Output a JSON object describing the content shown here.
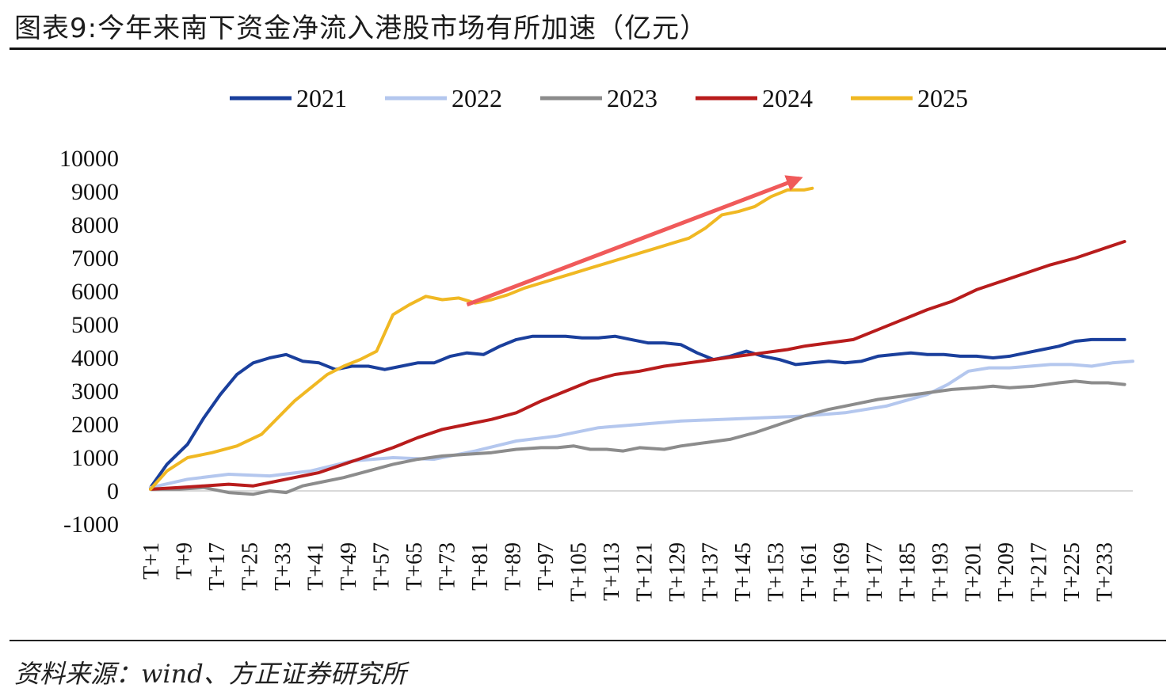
{
  "title": "图表9:今年来南下资金净流入港股市场有所加速（亿元）",
  "source": "资料来源：wind、方正证券研究所",
  "chart_data": {
    "type": "line",
    "ylim": [
      -1000,
      10000
    ],
    "yticks": [
      -1000,
      0,
      1000,
      2000,
      3000,
      4000,
      5000,
      6000,
      7000,
      8000,
      9000,
      10000
    ],
    "xrange": [
      1,
      240
    ],
    "xticks": [
      1,
      9,
      17,
      25,
      33,
      41,
      49,
      57,
      65,
      73,
      81,
      89,
      97,
      105,
      113,
      121,
      129,
      137,
      145,
      153,
      161,
      169,
      177,
      185,
      193,
      201,
      209,
      217,
      225,
      233
    ],
    "xtick_labels": [
      "T+1",
      "T+9",
      "T+17",
      "T+25",
      "T+33",
      "T+41",
      "T+49",
      "T+57",
      "T+65",
      "T+73",
      "T+81",
      "T+89",
      "T+97",
      "T+105",
      "T+113",
      "T+121",
      "T+129",
      "T+137",
      "T+145",
      "T+153",
      "T+161",
      "T+169",
      "T+177",
      "T+185",
      "T+193",
      "T+201",
      "T+209",
      "T+217",
      "T+225",
      "T+233"
    ],
    "legend_position": "top",
    "grid": false,
    "series": [
      {
        "name": "2021",
        "color": "#1a3f9c",
        "x": [
          1,
          5,
          10,
          14,
          18,
          22,
          26,
          30,
          34,
          36,
          38,
          42,
          46,
          50,
          54,
          58,
          62,
          66,
          70,
          74,
          78,
          82,
          86,
          90,
          94,
          98,
          102,
          106,
          110,
          114,
          118,
          122,
          126,
          130,
          134,
          138,
          142,
          146,
          150,
          154,
          158,
          162,
          166,
          170,
          174,
          178,
          182,
          186,
          190,
          194,
          198,
          202,
          206,
          210,
          214,
          218,
          222,
          226,
          230,
          234,
          238
        ],
        "y": [
          100,
          800,
          1400,
          2200,
          2900,
          3500,
          3850,
          4000,
          4100,
          4000,
          3900,
          3850,
          3650,
          3750,
          3750,
          3650,
          3750,
          3850,
          3850,
          4050,
          4150,
          4100,
          4350,
          4550,
          4650,
          4650,
          4650,
          4600,
          4600,
          4650,
          4550,
          4450,
          4450,
          4400,
          4150,
          3950,
          4050,
          4200,
          4050,
          3950,
          3800,
          3850,
          3900,
          3850,
          3900,
          4050,
          4100,
          4150,
          4100,
          4100,
          4050,
          4050,
          4000,
          4050,
          4150,
          4250,
          4350,
          4500,
          4550,
          4550,
          4550
        ]
      },
      {
        "name": "2022",
        "color": "#b4c7ee",
        "x": [
          1,
          10,
          20,
          30,
          40,
          50,
          60,
          70,
          80,
          90,
          100,
          110,
          120,
          130,
          140,
          150,
          160,
          170,
          180,
          190,
          195,
          200,
          205,
          210,
          215,
          220,
          225,
          230,
          235,
          240
        ],
        "y": [
          100,
          350,
          500,
          450,
          600,
          900,
          1000,
          950,
          1200,
          1500,
          1650,
          1900,
          2000,
          2100,
          2150,
          2200,
          2250,
          2350,
          2550,
          2900,
          3200,
          3600,
          3700,
          3700,
          3750,
          3800,
          3800,
          3750,
          3850,
          3900
        ]
      },
      {
        "name": "2023",
        "color": "#8c8c8c",
        "x": [
          1,
          8,
          14,
          20,
          26,
          30,
          34,
          38,
          42,
          48,
          54,
          60,
          66,
          72,
          78,
          84,
          90,
          96,
          100,
          104,
          108,
          112,
          116,
          120,
          126,
          130,
          136,
          142,
          148,
          154,
          160,
          166,
          172,
          178,
          184,
          190,
          196,
          202,
          206,
          210,
          216,
          222,
          226,
          230,
          234,
          238
        ],
        "y": [
          50,
          50,
          100,
          -50,
          -100,
          0,
          -50,
          150,
          250,
          400,
          600,
          800,
          950,
          1050,
          1100,
          1150,
          1250,
          1300,
          1300,
          1350,
          1250,
          1250,
          1200,
          1300,
          1250,
          1350,
          1450,
          1550,
          1750,
          2000,
          2250,
          2450,
          2600,
          2750,
          2850,
          2950,
          3050,
          3100,
          3150,
          3100,
          3150,
          3250,
          3300,
          3250,
          3250,
          3200
        ]
      },
      {
        "name": "2024",
        "color": "#b81c1c",
        "x": [
          1,
          8,
          14,
          20,
          26,
          30,
          36,
          42,
          48,
          54,
          60,
          66,
          72,
          78,
          84,
          90,
          96,
          102,
          108,
          114,
          120,
          126,
          132,
          138,
          144,
          150,
          156,
          160,
          166,
          172,
          178,
          184,
          190,
          196,
          202,
          208,
          214,
          220,
          226,
          232,
          238
        ],
        "y": [
          50,
          100,
          150,
          200,
          150,
          250,
          400,
          550,
          800,
          1050,
          1300,
          1600,
          1850,
          2000,
          2150,
          2350,
          2700,
          3000,
          3300,
          3500,
          3600,
          3750,
          3850,
          3950,
          4050,
          4150,
          4250,
          4350,
          4450,
          4550,
          4850,
          5150,
          5450,
          5700,
          6050,
          6300,
          6550,
          6800,
          7000,
          7250,
          7500
        ]
      },
      {
        "name": "2025",
        "color": "#f0b823",
        "x": [
          1,
          5,
          10,
          16,
          22,
          28,
          32,
          36,
          40,
          44,
          48,
          52,
          56,
          60,
          64,
          68,
          72,
          76,
          80,
          84,
          88,
          92,
          96,
          100,
          104,
          108,
          112,
          116,
          120,
          124,
          128,
          132,
          136,
          140,
          144,
          148,
          152,
          156,
          160,
          162
        ],
        "y": [
          50,
          600,
          1000,
          1150,
          1350,
          1700,
          2200,
          2700,
          3100,
          3500,
          3750,
          3950,
          4200,
          5300,
          5600,
          5850,
          5750,
          5800,
          5650,
          5750,
          5900,
          6100,
          6250,
          6400,
          6550,
          6700,
          6850,
          7000,
          7150,
          7300,
          7450,
          7600,
          7900,
          8300,
          8400,
          8550,
          8850,
          9050,
          9050,
          9100
        ]
      }
    ],
    "annotations": [
      {
        "type": "arrow",
        "color": "#f05a5a",
        "from": [
          78,
          5600
        ],
        "to": [
          159,
          9400
        ]
      }
    ]
  }
}
